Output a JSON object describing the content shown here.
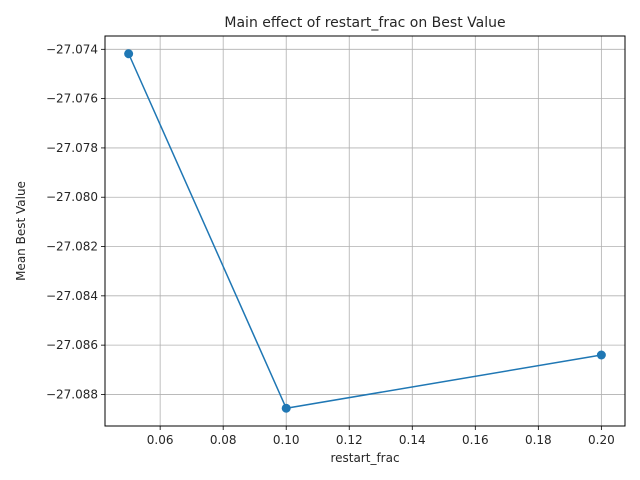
{
  "chart_data": {
    "type": "line",
    "title": "Main effect of restart_frac on Best Value",
    "xlabel": "restart_frac",
    "ylabel": "Mean Best Value",
    "x": [
      0.05,
      0.1,
      0.2
    ],
    "series": [
      {
        "values": [
          -27.07418,
          -27.08856,
          -27.0864
        ],
        "color": "#1f77b4"
      }
    ],
    "xlim": [
      0.0425,
      0.2075
    ],
    "ylim": [
      -27.08928,
      -27.07346
    ],
    "xticks": [
      0.06,
      0.08,
      0.1,
      0.12,
      0.14,
      0.16,
      0.18,
      0.2
    ],
    "xtick_labels": [
      "0.06",
      "0.08",
      "0.10",
      "0.12",
      "0.14",
      "0.16",
      "0.18",
      "0.20"
    ],
    "yticks": [
      -27.074,
      -27.076,
      -27.078,
      -27.08,
      -27.082,
      -27.084,
      -27.086,
      -27.088
    ],
    "ytick_labels": [
      "−27.074",
      "−27.076",
      "−27.078",
      "−27.080",
      "−27.082",
      "−27.084",
      "−27.086",
      "−27.088"
    ],
    "grid": true,
    "marker": "circle"
  }
}
